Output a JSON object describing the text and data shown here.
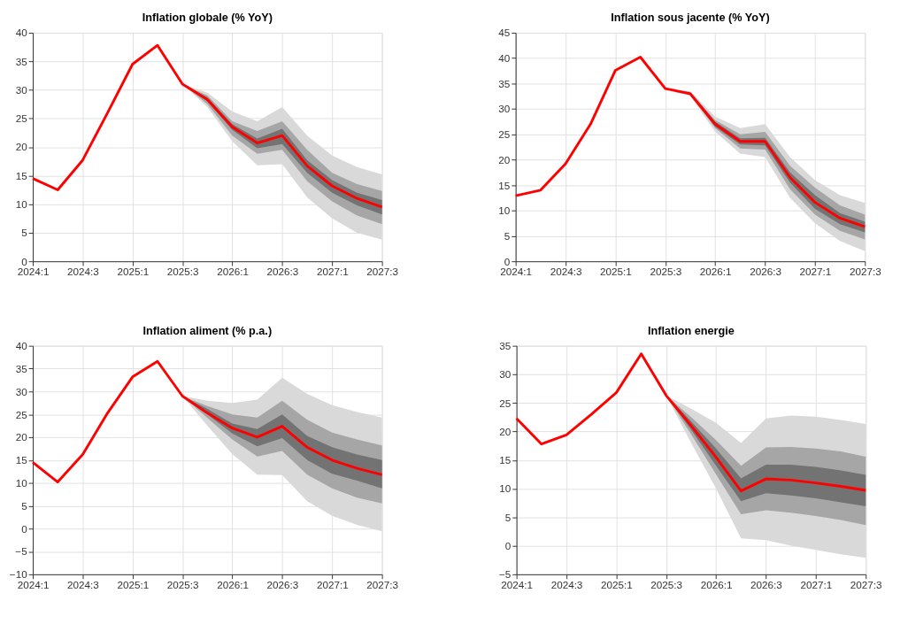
{
  "chart_data": [
    {
      "type": "line",
      "title": "Inflation globale (% YoY)",
      "categories": [
        "2024:1",
        null,
        "2024:3",
        null,
        "2025:1",
        null,
        "2025:3",
        null,
        "2026:1",
        null,
        "2026:3",
        null,
        "2027:1",
        null,
        "2027:3"
      ],
      "ylim": [
        0,
        40
      ],
      "yticks": [
        0,
        5,
        10,
        15,
        20,
        25,
        30,
        35,
        40
      ],
      "grid": true,
      "line_style": "solid",
      "marker": "none",
      "series": [
        {
          "color": "#d9d9d9",
          "values": [
            null,
            null,
            null,
            null,
            null,
            null,
            null,
            null,
            null,
            null,
            null,
            null,
            null,
            null,
            null
          ],
          "lower": [
            null,
            null,
            null,
            null,
            null,
            null,
            31,
            27,
            21,
            16.8,
            17,
            11.2,
            7.5,
            5,
            3.8
          ],
          "upper": [
            null,
            null,
            null,
            null,
            null,
            null,
            31,
            29.5,
            26.2,
            24.5,
            27,
            22,
            18.5,
            16.5,
            15.2
          ]
        },
        {
          "color": "#a6a6a6",
          "values": [
            null,
            null,
            null,
            null,
            null,
            null,
            null,
            null,
            null,
            null,
            null,
            null,
            null,
            null,
            null
          ],
          "lower": [
            null,
            null,
            null,
            null,
            null,
            null,
            31,
            27.5,
            22,
            18.8,
            19.5,
            14,
            10.5,
            8,
            6.5
          ],
          "upper": [
            null,
            null,
            null,
            null,
            null,
            null,
            31,
            29,
            24.5,
            22.8,
            24.5,
            19.5,
            15.5,
            13.5,
            12.3
          ]
        },
        {
          "color": "#737373",
          "values": [
            null,
            null,
            null,
            null,
            null,
            null,
            null,
            null,
            null,
            null,
            null,
            null,
            null,
            null,
            null
          ],
          "lower": [
            null,
            null,
            null,
            null,
            null,
            null,
            31,
            28,
            23,
            19.8,
            20.5,
            15.5,
            12,
            9.8,
            8.2
          ],
          "upper": [
            null,
            null,
            null,
            null,
            null,
            null,
            31,
            28.7,
            24,
            21.5,
            23.2,
            17.7,
            14.2,
            12,
            10.7
          ]
        },
        {
          "color": "#ff0000",
          "values": [
            14.5,
            12.5,
            17.7,
            26,
            34.5,
            37.8,
            31,
            28.3,
            23.5,
            20.7,
            22,
            16.7,
            13.2,
            11,
            9.5
          ]
        }
      ]
    },
    {
      "type": "line",
      "title": "Inflation sous jacente (% YoY)",
      "categories": [
        "2024:1",
        null,
        "2024:3",
        null,
        "2025:1",
        null,
        "2025:3",
        null,
        "2026:1",
        null,
        "2026:3",
        null,
        "2027:1",
        null,
        "2027:3"
      ],
      "ylim": [
        0,
        45
      ],
      "yticks": [
        0,
        5,
        10,
        15,
        20,
        25,
        30,
        35,
        40,
        45
      ],
      "grid": true,
      "line_style": "solid",
      "marker": "none",
      "series": [
        {
          "color": "#d9d9d9",
          "values": [
            null,
            null,
            null,
            null,
            null,
            null,
            null,
            null,
            null,
            null,
            null,
            null,
            null,
            null,
            null
          ],
          "lower": [
            null,
            null,
            null,
            null,
            null,
            null,
            34,
            32.5,
            25.5,
            21.2,
            20.5,
            12.5,
            7.5,
            4,
            2
          ],
          "upper": [
            null,
            null,
            null,
            null,
            null,
            null,
            34,
            33.5,
            28.5,
            26.2,
            27,
            20.5,
            16,
            13,
            11.5
          ]
        },
        {
          "color": "#a6a6a6",
          "values": [
            null,
            null,
            null,
            null,
            null,
            null,
            null,
            null,
            null,
            null,
            null,
            null,
            null,
            null,
            null
          ],
          "lower": [
            null,
            null,
            null,
            null,
            null,
            null,
            34,
            32.7,
            26.2,
            22.2,
            22,
            14.2,
            9.2,
            6,
            4.3
          ],
          "upper": [
            null,
            null,
            null,
            null,
            null,
            null,
            34,
            33.3,
            27.8,
            25,
            25.5,
            18.8,
            14.5,
            11,
            9.2
          ]
        },
        {
          "color": "#737373",
          "values": [
            null,
            null,
            null,
            null,
            null,
            null,
            null,
            null,
            null,
            null,
            null,
            null,
            null,
            null,
            null
          ],
          "lower": [
            null,
            null,
            null,
            null,
            null,
            null,
            34,
            32.8,
            26.5,
            23,
            22.8,
            15.5,
            10.3,
            7.3,
            5.7
          ],
          "upper": [
            null,
            null,
            null,
            null,
            null,
            null,
            34,
            33.2,
            27.5,
            24.2,
            24.3,
            17.5,
            13,
            9.5,
            7.8
          ]
        },
        {
          "color": "#ff0000",
          "values": [
            12.9,
            14,
            19.2,
            27,
            37.6,
            40.2,
            34,
            33,
            27,
            23.6,
            23.6,
            16.5,
            11.6,
            8.5,
            6.8
          ]
        }
      ]
    },
    {
      "type": "line",
      "title": "Inflation aliment (% p.a.)",
      "categories": [
        "2024:1",
        null,
        "2024:3",
        null,
        "2025:1",
        null,
        "2025:3",
        null,
        "2026:1",
        null,
        "2026:3",
        null,
        "2027:1",
        null,
        "2027:3"
      ],
      "ylim": [
        -10,
        40
      ],
      "yticks": [
        -10,
        -5,
        0,
        5,
        10,
        15,
        20,
        25,
        30,
        35,
        40
      ],
      "grid": true,
      "line_style": "solid",
      "marker": "none",
      "series": [
        {
          "color": "#d9d9d9",
          "values": [
            null,
            null,
            null,
            null,
            null,
            null,
            null,
            null,
            null,
            null,
            null,
            null,
            null,
            null,
            null
          ],
          "lower": [
            null,
            null,
            null,
            null,
            null,
            null,
            29,
            22.5,
            16.3,
            11.8,
            11.7,
            6,
            2.8,
            0.8,
            -0.6
          ],
          "upper": [
            null,
            null,
            null,
            null,
            null,
            null,
            29,
            28,
            27.5,
            28.2,
            33,
            29.5,
            27,
            25.5,
            24.3
          ]
        },
        {
          "color": "#a6a6a6",
          "values": [
            null,
            null,
            null,
            null,
            null,
            null,
            null,
            null,
            null,
            null,
            null,
            null,
            null,
            null,
            null
          ],
          "lower": [
            null,
            null,
            null,
            null,
            null,
            null,
            29,
            24.2,
            19.5,
            15.8,
            17,
            11.8,
            8.8,
            6.8,
            5.5
          ],
          "upper": [
            null,
            null,
            null,
            null,
            null,
            null,
            29,
            26.8,
            25,
            24.3,
            28,
            23.8,
            21,
            19.5,
            18.2
          ]
        },
        {
          "color": "#737373",
          "values": [
            null,
            null,
            null,
            null,
            null,
            null,
            null,
            null,
            null,
            null,
            null,
            null,
            null,
            null,
            null
          ],
          "lower": [
            null,
            null,
            null,
            null,
            null,
            null,
            29,
            25,
            20.8,
            18,
            19.8,
            15,
            12,
            10.5,
            8.8
          ],
          "upper": [
            null,
            null,
            null,
            null,
            null,
            null,
            29,
            26.2,
            23,
            21.8,
            25,
            20.3,
            17.8,
            16.2,
            15
          ]
        },
        {
          "color": "#ff0000",
          "values": [
            14.5,
            10.2,
            16.2,
            25.3,
            33.2,
            36.6,
            29,
            25.3,
            22,
            20,
            22.4,
            17.8,
            15,
            13.2,
            11.8
          ]
        }
      ]
    },
    {
      "type": "line",
      "title": "Inflation energie",
      "categories": [
        "2024:1",
        null,
        "2024:3",
        null,
        "2025:1",
        null,
        "2025:3",
        null,
        "2026:1",
        null,
        "2026:3",
        null,
        "2027:1",
        null,
        "2027:3"
      ],
      "ylim": [
        -5,
        35
      ],
      "yticks": [
        -5,
        0,
        5,
        10,
        15,
        20,
        25,
        30,
        35
      ],
      "grid": true,
      "line_style": "solid",
      "marker": "none",
      "series": [
        {
          "color": "#d9d9d9",
          "values": [
            null,
            null,
            null,
            null,
            null,
            null,
            null,
            null,
            null,
            null,
            null,
            null,
            null,
            null,
            null
          ],
          "lower": [
            null,
            null,
            null,
            null,
            null,
            null,
            26.3,
            18,
            10,
            1.3,
            1,
            0,
            -0.7,
            -1.5,
            -2.1
          ],
          "upper": [
            null,
            null,
            null,
            null,
            null,
            null,
            26.3,
            24,
            21.5,
            18,
            22.3,
            22.8,
            22.6,
            22,
            21.3
          ]
        },
        {
          "color": "#a6a6a6",
          "values": [
            null,
            null,
            null,
            null,
            null,
            null,
            null,
            null,
            null,
            null,
            null,
            null,
            null,
            null,
            null
          ],
          "lower": [
            null,
            null,
            null,
            null,
            null,
            null,
            26.3,
            19.5,
            12.5,
            5.5,
            6.2,
            5.8,
            5.2,
            4.5,
            3.6
          ],
          "upper": [
            null,
            null,
            null,
            null,
            null,
            null,
            26.3,
            22.5,
            18.5,
            14,
            17.2,
            17.3,
            17,
            16.5,
            15.6
          ]
        },
        {
          "color": "#737373",
          "values": [
            null,
            null,
            null,
            null,
            null,
            null,
            null,
            null,
            null,
            null,
            null,
            null,
            null,
            null,
            null
          ],
          "lower": [
            null,
            null,
            null,
            null,
            null,
            null,
            26.3,
            20.3,
            14,
            7.8,
            9.2,
            8.8,
            8.3,
            7.6,
            6.9
          ],
          "upper": [
            null,
            null,
            null,
            null,
            null,
            null,
            26.3,
            21.8,
            17,
            11.8,
            14.2,
            14.2,
            13.8,
            13.2,
            12.4
          ]
        },
        {
          "color": "#ff0000",
          "values": [
            22.3,
            17.8,
            19.4,
            23,
            26.8,
            33.6,
            26.3,
            21,
            15.5,
            9.6,
            11.7,
            11.5,
            11,
            10.4,
            9.7
          ]
        }
      ]
    }
  ]
}
